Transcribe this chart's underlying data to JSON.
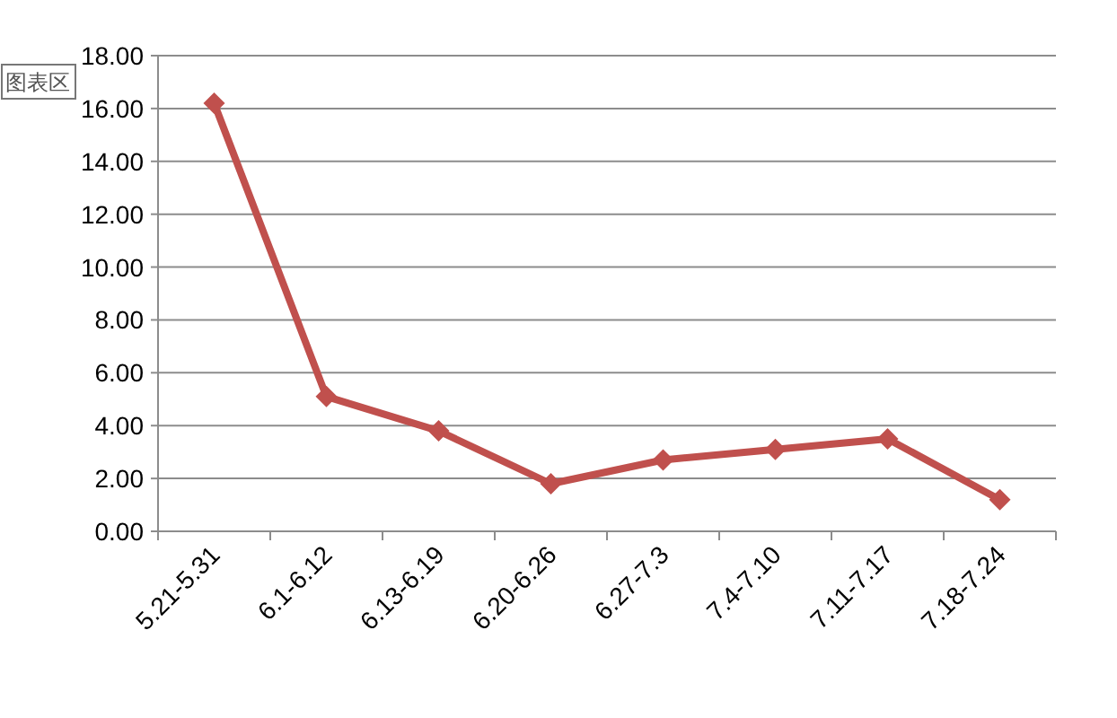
{
  "chart_data": {
    "type": "line",
    "categories": [
      "5.21-5.31",
      "6.1-6.12",
      "6.13-6.19",
      "6.20-6.26",
      "6.27-7.3",
      "7.4-7.10",
      "7.11-7.17",
      "7.18-7.24"
    ],
    "series": [
      {
        "color": "#c0504d",
        "values": [
          16.2,
          5.1,
          3.8,
          1.8,
          2.7,
          3.1,
          3.5,
          1.2
        ]
      }
    ],
    "ylim": [
      0,
      18
    ],
    "yticks": [
      {
        "value": 0,
        "label": "0.00"
      },
      {
        "value": 2,
        "label": "2.00"
      },
      {
        "value": 4,
        "label": "4.00"
      },
      {
        "value": 6,
        "label": "6.00"
      },
      {
        "value": 8,
        "label": "8.00"
      },
      {
        "value": 10,
        "label": "10.00"
      },
      {
        "value": 12,
        "label": "12.00"
      },
      {
        "value": 14,
        "label": "14.00"
      },
      {
        "value": 16,
        "label": "16.00"
      },
      {
        "value": 18,
        "label": "18.00"
      }
    ],
    "grid": "y",
    "marker": "diamond",
    "line_style": "solid",
    "annotations": [
      "图表区"
    ]
  }
}
